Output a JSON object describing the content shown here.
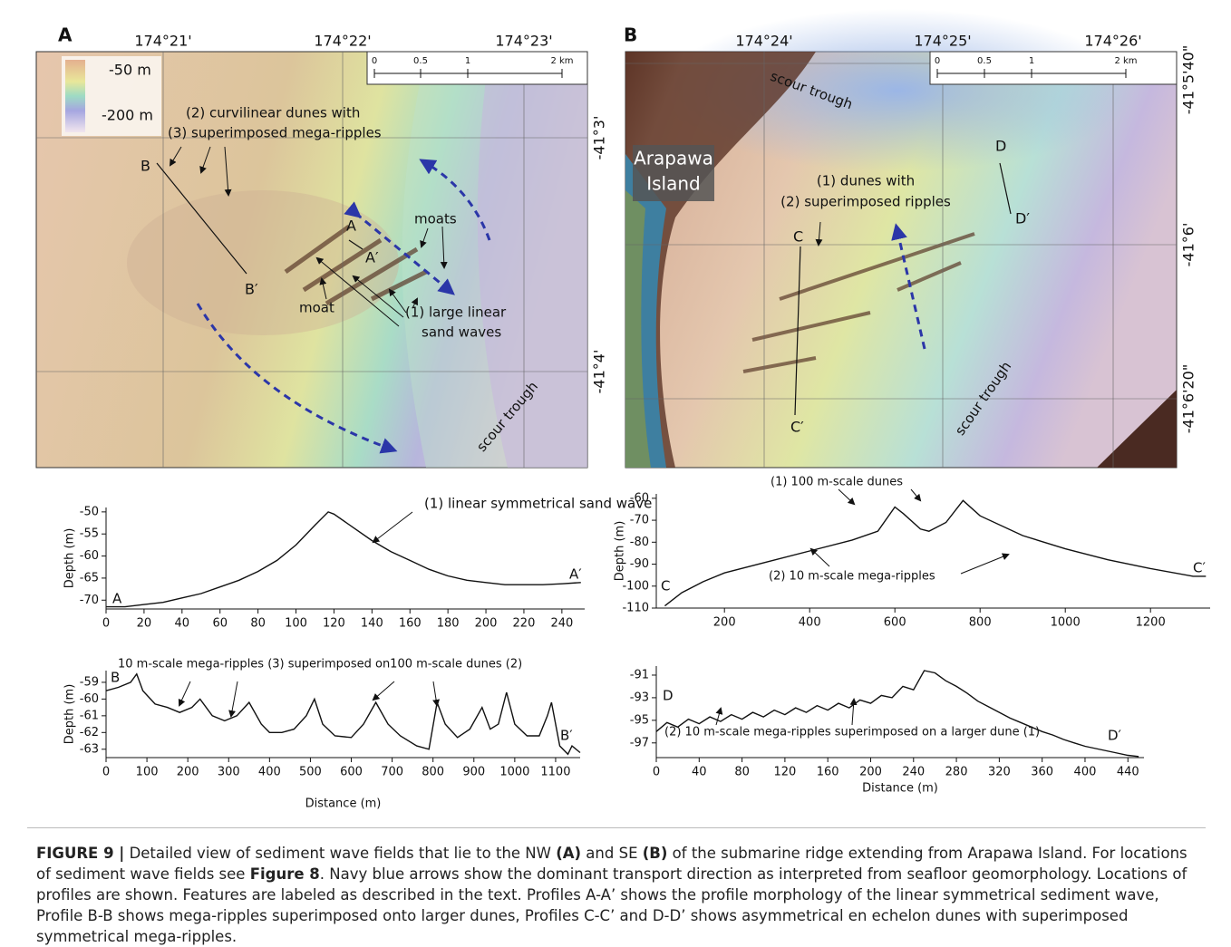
{
  "map_a": {
    "panel": "A",
    "lon_labels": [
      "174°21'",
      "174°22'",
      "174°23'"
    ],
    "lat_labels": [
      "-41°3'",
      "-41°4'"
    ],
    "legend": [
      "-50 m",
      "-200 m"
    ],
    "scale": [
      "0",
      "0.5",
      "1",
      "2 km"
    ],
    "labels": [
      "(2) curvilinear dunes with",
      "(3) superimposed mega-ripples",
      "moats",
      "moat",
      "(1) large linear",
      "sand waves",
      "scour trough",
      "B",
      "B′",
      "A",
      "A′"
    ]
  },
  "map_b": {
    "panel": "B",
    "lon_labels": [
      "174°24'",
      "174°25'",
      "174°26'"
    ],
    "lat_labels": [
      "-41°5'40\"",
      "-41°6'",
      "-41°6'20\""
    ],
    "scale": [
      "0",
      "0.5",
      "1",
      "2 km"
    ],
    "labels": [
      "scour trough",
      "Arapawa",
      "Island",
      "(1) dunes with",
      "(2) superimposed ripples",
      "scour trough",
      "C",
      "C′",
      "D",
      "D′"
    ]
  },
  "chart_data": [
    {
      "type": "line",
      "ylabel": "Depth (m)",
      "x": [
        0,
        10,
        20,
        30,
        40,
        50,
        60,
        70,
        80,
        90,
        100,
        110,
        117,
        120,
        130,
        140,
        150,
        160,
        170,
        180,
        190,
        200,
        210,
        220,
        230,
        240,
        250
      ],
      "y": [
        -71.5,
        -71.5,
        -71,
        -70.5,
        -69.5,
        -68.5,
        -67,
        -65.5,
        -63.5,
        -61,
        -57.5,
        -53,
        -50,
        -50.5,
        -53.5,
        -56.5,
        -59,
        -61,
        -63,
        -64.5,
        -65.5,
        -66,
        -66.5,
        -66.5,
        -66.5,
        -66.3,
        -66
      ],
      "xlim": [
        0,
        252
      ],
      "ylim": [
        -72,
        -49
      ],
      "xticks": [
        0,
        20,
        40,
        60,
        80,
        100,
        120,
        140,
        160,
        180,
        200,
        220,
        240
      ],
      "yticks": [
        -50,
        -55,
        -60,
        -65,
        -70
      ],
      "annotations": [
        "(1) linear symmetrical sand wave",
        "A",
        "A′"
      ]
    },
    {
      "type": "line",
      "ylabel": "Depth (m)",
      "xlabel": "Distance (m)",
      "x": [
        0,
        30,
        60,
        75,
        90,
        120,
        150,
        180,
        210,
        230,
        260,
        290,
        320,
        350,
        380,
        400,
        430,
        460,
        490,
        510,
        530,
        560,
        600,
        630,
        660,
        690,
        720,
        760,
        790,
        810,
        830,
        860,
        890,
        920,
        940,
        960,
        980,
        1000,
        1030,
        1060,
        1080,
        1090,
        1110,
        1130,
        1140,
        1160
      ],
      "y": [
        -59.5,
        -59.3,
        -59,
        -58.5,
        -59.5,
        -60.3,
        -60.5,
        -60.8,
        -60.5,
        -60,
        -61,
        -61.3,
        -61,
        -60.2,
        -61.5,
        -62,
        -62,
        -61.8,
        -61,
        -60,
        -61.5,
        -62.2,
        -62.3,
        -61.5,
        -60.2,
        -61.5,
        -62.2,
        -62.8,
        -63,
        -60.2,
        -61.5,
        -62.3,
        -61.8,
        -60.5,
        -61.8,
        -61.5,
        -59.6,
        -61.5,
        -62.2,
        -62.2,
        -61,
        -60.2,
        -62.8,
        -63.3,
        -62.8,
        -63.2
      ],
      "xlim": [
        0,
        1160
      ],
      "ylim": [
        -63.5,
        -58.3
      ],
      "xticks": [
        0,
        100,
        200,
        300,
        400,
        500,
        600,
        700,
        800,
        900,
        1000,
        1100
      ],
      "yticks": [
        -59,
        -60,
        -61,
        -62,
        -63
      ],
      "annotations": [
        "10 m-scale mega-ripples (3) superimposed on100 m-scale dunes (2)",
        "B",
        "B′"
      ]
    },
    {
      "type": "line",
      "ylabel": "Depth (m)",
      "x": [
        60,
        100,
        150,
        200,
        300,
        400,
        500,
        560,
        600,
        620,
        660,
        680,
        720,
        760,
        800,
        900,
        1000,
        1100,
        1200,
        1300,
        1330
      ],
      "y": [
        -109,
        -103,
        -98,
        -94,
        -89,
        -84,
        -79,
        -75,
        -64,
        -67,
        -74,
        -75,
        -71,
        -61,
        -68,
        -77,
        -83,
        -88,
        -92,
        -95.5,
        -95.5
      ],
      "xlim": [
        40,
        1340
      ],
      "ylim": [
        -110,
        -58
      ],
      "xticks": [
        200,
        400,
        600,
        800,
        1000,
        1200
      ],
      "yticks": [
        -60,
        -70,
        -80,
        -90,
        -100,
        -110
      ],
      "annotations": [
        "(1) 100 m-scale dunes",
        "(2) 10 m-scale mega-ripples",
        "C",
        "C′"
      ]
    },
    {
      "type": "line",
      "xlabel": "Distance (m)",
      "x": [
        0,
        10,
        20,
        30,
        40,
        50,
        60,
        70,
        80,
        90,
        100,
        110,
        120,
        130,
        140,
        150,
        160,
        170,
        180,
        190,
        200,
        210,
        220,
        230,
        240,
        250,
        260,
        270,
        280,
        290,
        300,
        310,
        320,
        330,
        340,
        350,
        360,
        370,
        380,
        390,
        400,
        410,
        420,
        430,
        440,
        450
      ],
      "y": [
        -96,
        -95.2,
        -95.6,
        -94.9,
        -95.3,
        -94.7,
        -95.1,
        -94.5,
        -94.9,
        -94.3,
        -94.7,
        -94.1,
        -94.5,
        -93.9,
        -94.3,
        -93.7,
        -94.1,
        -93.5,
        -93.9,
        -93.2,
        -93.5,
        -92.8,
        -93,
        -92,
        -92.3,
        -90.6,
        -90.8,
        -91.5,
        -92,
        -92.6,
        -93.3,
        -93.8,
        -94.3,
        -94.8,
        -95.2,
        -95.6,
        -96,
        -96.3,
        -96.7,
        -97,
        -97.3,
        -97.5,
        -97.7,
        -97.9,
        -98.1,
        -98.2
      ],
      "xlim": [
        0,
        455
      ],
      "ylim": [
        -98.3,
        -90.2
      ],
      "xticks": [
        0,
        40,
        80,
        120,
        160,
        200,
        240,
        280,
        320,
        360,
        400,
        440
      ],
      "yticks": [
        -91,
        -93,
        -95,
        -97
      ],
      "annotations": [
        "(2) 10 m-scale mega-ripples superimposed on a larger dune (1)",
        "D",
        "D′"
      ]
    }
  ],
  "caption": [
    {
      "text": "FIGURE 9 |",
      "bold": true
    },
    {
      "text": " Detailed view of sediment wave fields that lie to the NW ",
      "bold": false
    },
    {
      "text": "(A)",
      "bold": true
    },
    {
      "text": " and SE ",
      "bold": false
    },
    {
      "text": "(B)",
      "bold": true
    },
    {
      "text": " of the submarine ridge extending from Arapawa Island. For locations of sediment wave fields see ",
      "bold": false
    },
    {
      "text": "Figure 8",
      "bold": true
    },
    {
      "text": ". Navy blue arrows show the dominant transport direction as interpreted from seafloor geomorphology. Locations of profiles are shown. Features are labeled as described in the text. Profiles A-A’ shows the profile morphology of the linear symmetrical sediment wave, Profile B-B shows mega-ripples superimposed onto larger dunes, Profiles C-C’ and D-D’ shows asymmetrical en echelon dunes with superimposed symmetrical mega-ripples.",
      "bold": false
    }
  ]
}
